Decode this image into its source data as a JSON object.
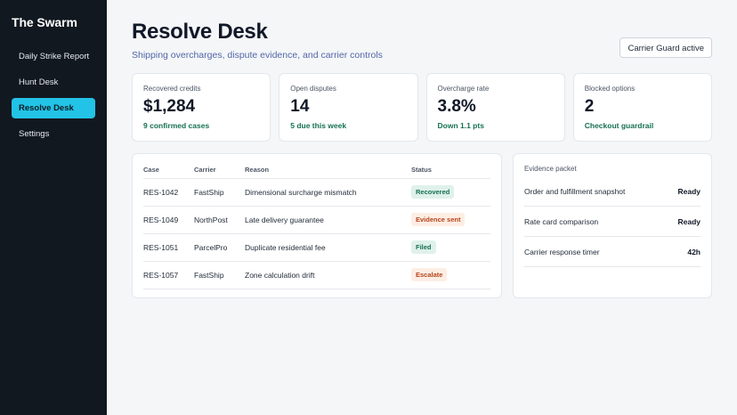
{
  "sidebar": {
    "brand": "The Swarm",
    "items": [
      {
        "label": "Daily Strike Report"
      },
      {
        "label": "Hunt Desk"
      },
      {
        "label": "Resolve Desk",
        "active": true
      },
      {
        "label": "Settings"
      }
    ]
  },
  "header": {
    "title": "Resolve Desk",
    "subtitle": "Shipping overcharges, dispute evidence, and carrier controls",
    "guard_button": "Carrier Guard active"
  },
  "cards": [
    {
      "label": "Recovered credits",
      "value": "$1,284",
      "note": "9 confirmed cases"
    },
    {
      "label": "Open disputes",
      "value": "14",
      "note": "5 due this week"
    },
    {
      "label": "Overcharge rate",
      "value": "3.8%",
      "note": "Down 1.1 pts"
    },
    {
      "label": "Blocked options",
      "value": "2",
      "note": "Checkout guardrail"
    }
  ],
  "table": {
    "headers": {
      "case": "Case",
      "carrier": "Carrier",
      "reason": "Reason",
      "status": "Status"
    },
    "rows": [
      {
        "case": "RES-1042",
        "carrier": "FastShip",
        "reason": "Dimensional surcharge mismatch",
        "status": "Recovered",
        "tone": "green"
      },
      {
        "case": "RES-1049",
        "carrier": "NorthPost",
        "reason": "Late delivery guarantee",
        "status": "Evidence sent",
        "tone": "orange"
      },
      {
        "case": "RES-1051",
        "carrier": "ParcelPro",
        "reason": "Duplicate residential fee",
        "status": "Filed",
        "tone": "green"
      },
      {
        "case": "RES-1057",
        "carrier": "FastShip",
        "reason": "Zone calculation drift",
        "status": "Escalate",
        "tone": "orange"
      }
    ]
  },
  "evidence": {
    "title": "Evidence packet",
    "items": [
      {
        "label": "Order and fulfillment snapshot",
        "value": "Ready"
      },
      {
        "label": "Rate card comparison",
        "value": "Ready"
      },
      {
        "label": "Carrier response timer",
        "value": "42h"
      }
    ]
  },
  "colors": {
    "sidebar_bg": "#121820",
    "accent": "#22c3e6",
    "positive": "#157053",
    "warning": "#b5451b"
  }
}
